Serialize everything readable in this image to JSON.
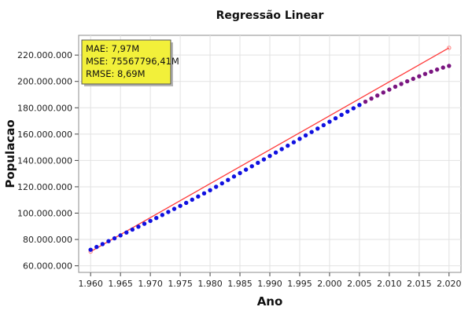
{
  "chart_data": {
    "type": "scatter",
    "title": "Regressão Linear",
    "xlabel": "Ano",
    "ylabel": "Populacao",
    "xlim": [
      1958,
      2022
    ],
    "ylim": [
      55000000,
      235000000
    ],
    "x_ticks": [
      1960,
      1965,
      1970,
      1975,
      1980,
      1985,
      1990,
      1995,
      2000,
      2005,
      2010,
      2015,
      2020
    ],
    "x_tick_labels": [
      "1.960",
      "1.965",
      "1.970",
      "1.975",
      "1.980",
      "1.985",
      "1.990",
      "1.995",
      "2.000",
      "2.005",
      "2.010",
      "2.015",
      "2.020"
    ],
    "y_ticks": [
      60000000,
      80000000,
      100000000,
      120000000,
      140000000,
      160000000,
      180000000,
      200000000,
      220000000
    ],
    "y_tick_labels": [
      "60.000.000",
      "80.000.000",
      "100.000.000",
      "120.000.000",
      "140.000.000",
      "160.000.000",
      "180.000.000",
      "200.000.000",
      "220.000.000"
    ],
    "grid": true,
    "metrics_box": {
      "lines": [
        "MAE: 7,97M",
        "MSE: 75567796,41M",
        "RMSE: 8,69M"
      ],
      "background": "#f2f03a",
      "placement": "top-left"
    },
    "series": [
      {
        "kind": "regression-line",
        "color": "#ff3b3b",
        "x": [
          1960,
          2020
        ],
        "values": [
          70800000,
          225500000
        ]
      },
      {
        "kind": "scatter",
        "color": "#1010e0",
        "x": [
          1960,
          1961,
          1962,
          1963,
          1964,
          1965,
          1966,
          1967,
          1968,
          1969,
          1970,
          1971,
          1972,
          1973,
          1974,
          1975,
          1976,
          1977,
          1978,
          1979,
          1980,
          1981,
          1982,
          1983,
          1984,
          1985,
          1986,
          1987,
          1988,
          1989,
          1990,
          1991,
          1992,
          1993,
          1994,
          1995,
          1996,
          1997,
          1998,
          1999,
          2000,
          2001,
          2002,
          2003,
          2004,
          2005
        ],
        "values": [
          72200000,
          74300000,
          76500000,
          78700000,
          80900000,
          83100000,
          85300000,
          87500000,
          89700000,
          91900000,
          94100000,
          96300000,
          98600000,
          100900000,
          103200000,
          105500000,
          107800000,
          110200000,
          112600000,
          115000000,
          117400000,
          120000000,
          122600000,
          125200000,
          127800000,
          130400000,
          133000000,
          135600000,
          138200000,
          140800000,
          143400000,
          146000000,
          148600000,
          151200000,
          153800000,
          156400000,
          159000000,
          161600000,
          164200000,
          166800000,
          169400000,
          172000000,
          174600000,
          177100000,
          179600000,
          182100000
        ]
      },
      {
        "kind": "scatter",
        "color": "#7a1580",
        "x": [
          2006,
          2007,
          2008,
          2009,
          2010,
          2011,
          2012,
          2013,
          2014,
          2015,
          2016,
          2017,
          2018,
          2019,
          2020
        ],
        "values": [
          184600000,
          187000000,
          189300000,
          191600000,
          193800000,
          196000000,
          198100000,
          200100000,
          202000000,
          203900000,
          205700000,
          207400000,
          209000000,
          210500000,
          211800000
        ]
      }
    ]
  }
}
